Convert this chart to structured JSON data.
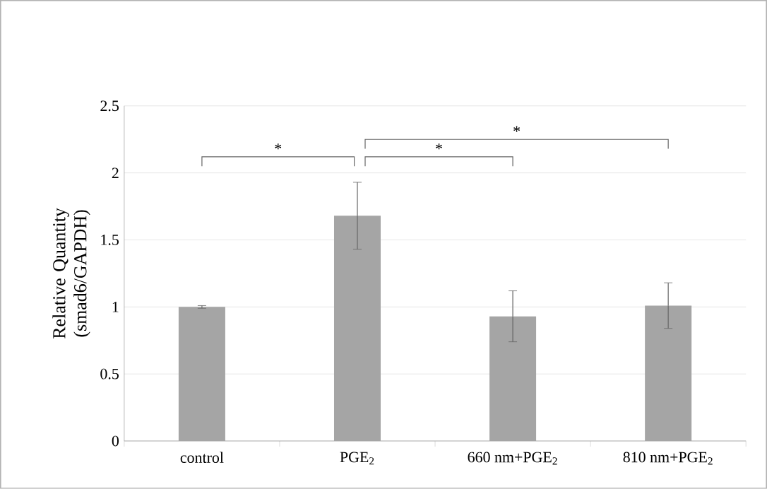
{
  "chart_data": {
    "type": "bar",
    "ylabel": "Relative Quantity (smad6/GAPDH)",
    "categories": [
      "control",
      "PGE$_{2}$",
      "660 nm+PGE$_{2}$",
      "810 nm+PGE$_{2}$"
    ],
    "values": [
      1.0,
      1.68,
      0.93,
      1.01
    ],
    "errors": [
      0.01,
      0.25,
      0.19,
      0.17
    ],
    "color": "#a5a5a5",
    "ylim": [
      0,
      2.5
    ],
    "yticks": [
      0,
      0.5,
      1,
      1.5,
      2,
      2.5
    ],
    "grid": "y",
    "annotations": [
      "*",
      "*",
      "*"
    ]
  }
}
